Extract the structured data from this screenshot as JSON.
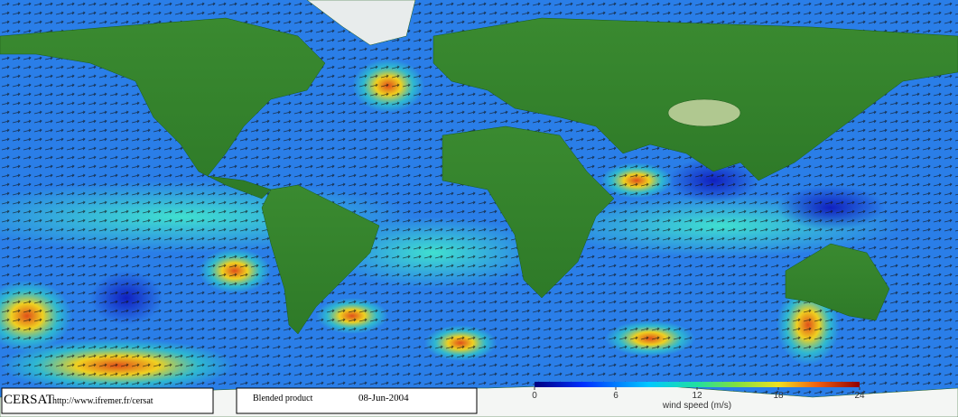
{
  "footer": {
    "brand": "CERSAT",
    "url": "http://www.ifremer.fr/cersat",
    "product": "Blended product",
    "date": "08-Jun-2004"
  },
  "colorbar": {
    "lim": [
      0,
      24
    ],
    "ticks": [
      0,
      6,
      12,
      18,
      24
    ],
    "label": "wind speed (m/s)"
  }
}
